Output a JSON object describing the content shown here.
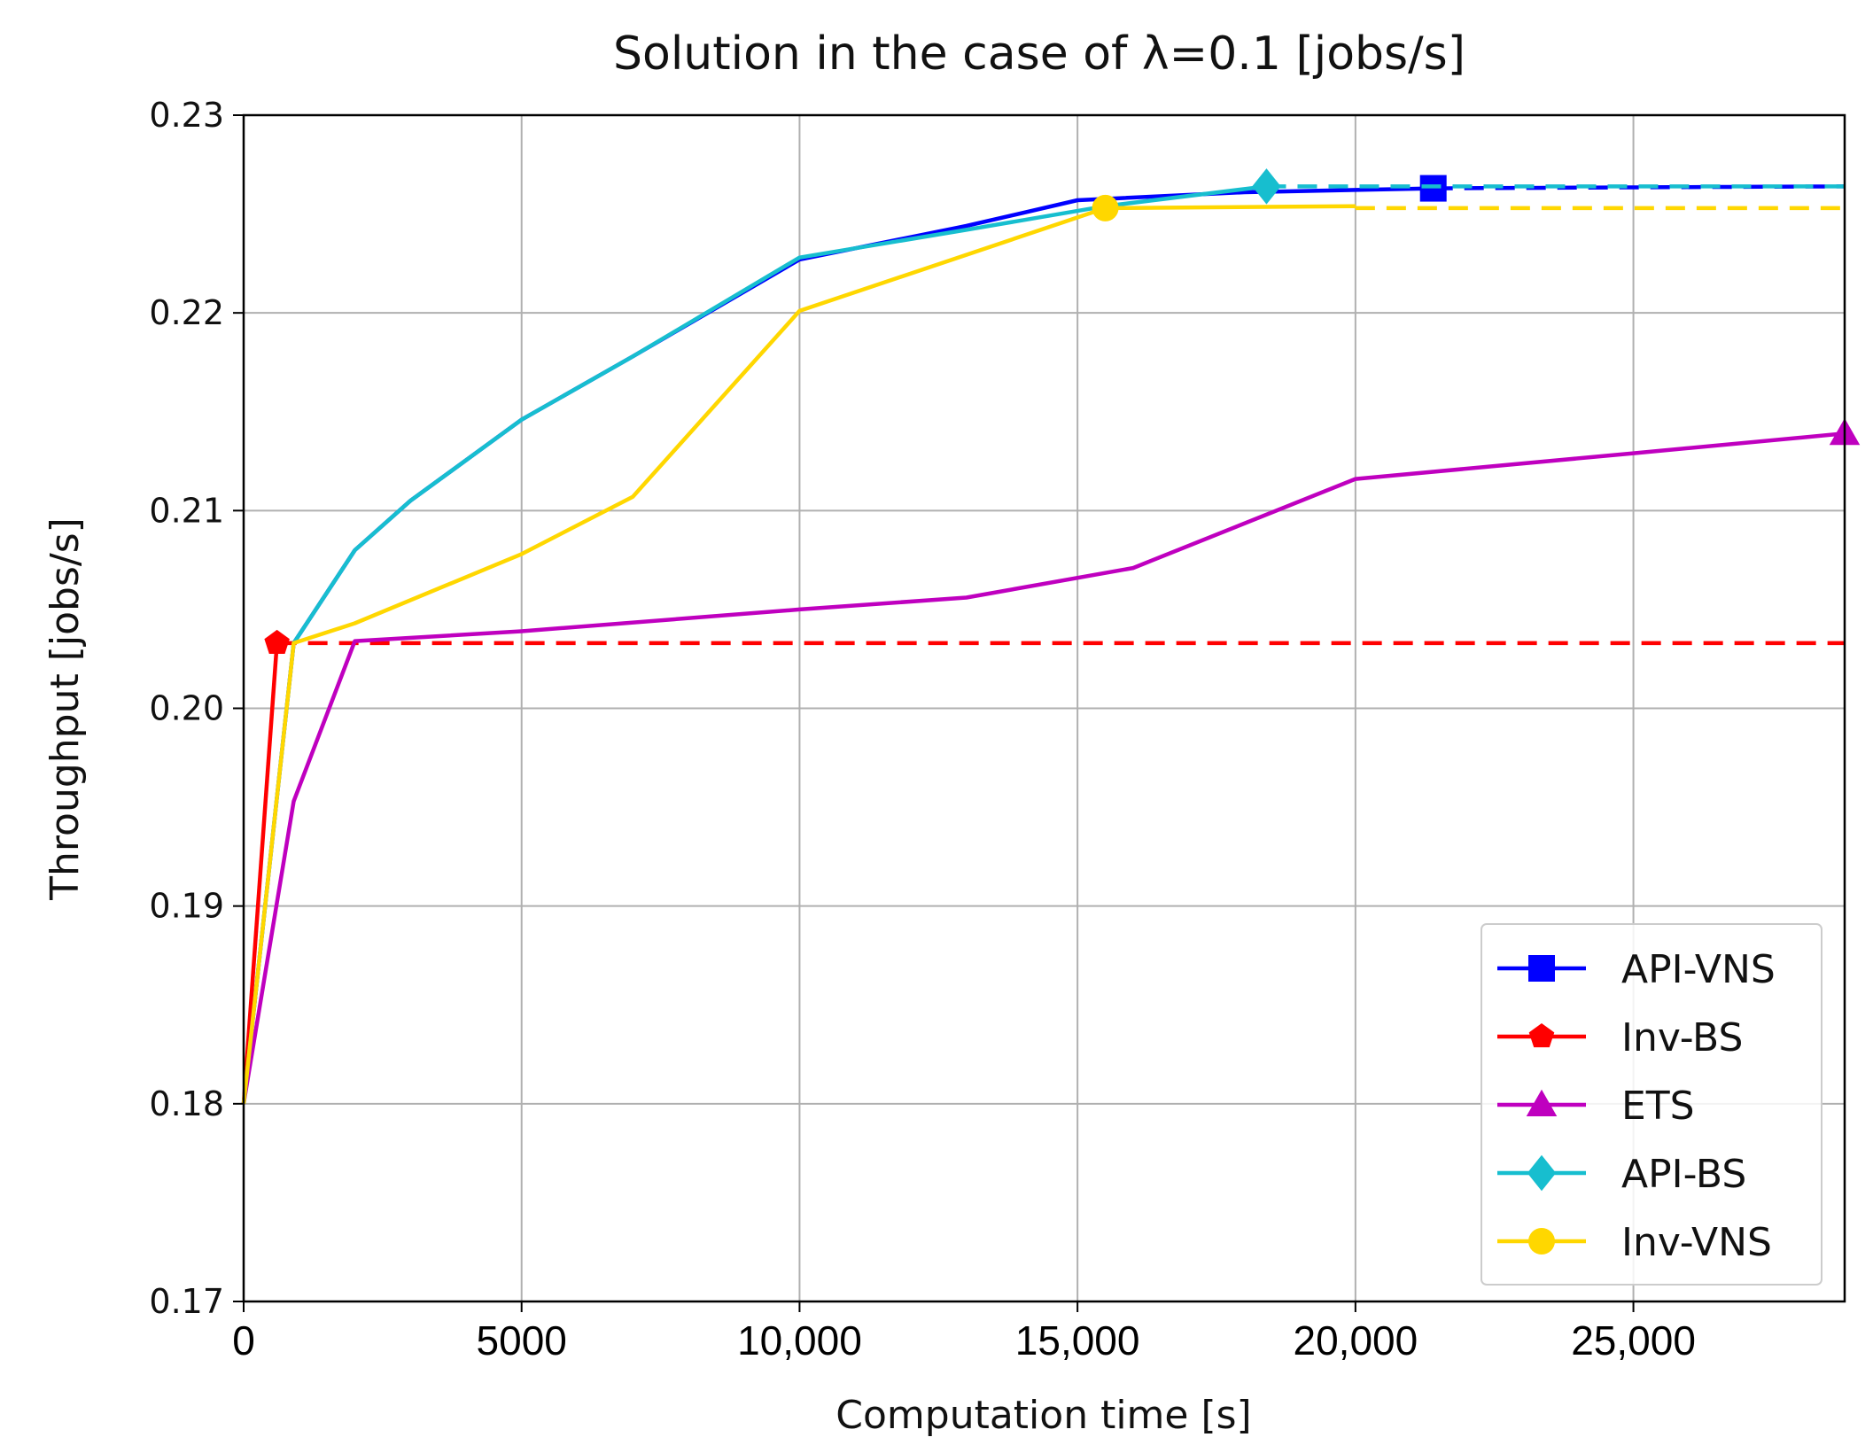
{
  "chart_data": {
    "type": "line",
    "title": "Solution in the case of λ=0.1 [jobs/s]",
    "xlabel": "Computation time [s]",
    "ylabel": "Throughput [jobs/s]",
    "xlim": [
      0,
      28800
    ],
    "ylim": [
      0.17,
      0.23
    ],
    "xticks": [
      0,
      5000,
      10000,
      15000,
      20000,
      25000
    ],
    "xtick_labels": [
      "0",
      "5000",
      "10,000",
      "15,000",
      "20,000",
      "25,000"
    ],
    "yticks": [
      0.17,
      0.18,
      0.19,
      0.2,
      0.21,
      0.22,
      0.23
    ],
    "ytick_labels": [
      "0.17",
      "0.18",
      "0.19",
      "0.20",
      "0.21",
      "0.22",
      "0.23"
    ],
    "grid": true,
    "legend_position": "lower-right",
    "series": [
      {
        "name": "API-VNS",
        "color": "#0000ff",
        "marker": "square",
        "x": [
          0,
          900,
          2000,
          3000,
          5000,
          7000,
          10000,
          13000,
          15000,
          18000,
          21400
        ],
        "y": [
          0.18,
          0.2033,
          0.208,
          0.2105,
          0.2146,
          0.2178,
          0.2227,
          0.2244,
          0.2257,
          0.2261,
          0.2263
        ],
        "final_marker": [
          21400,
          0.2263
        ],
        "dashed_to": [
          28800,
          0.2264
        ]
      },
      {
        "name": "Inv-BS",
        "color": "#ff0000",
        "marker": "pentagon",
        "x": [
          0,
          600
        ],
        "y": [
          0.18,
          0.2033
        ],
        "final_marker": [
          600,
          0.2033
        ],
        "dashed_to": [
          28800,
          0.2033
        ]
      },
      {
        "name": "ETS",
        "color": "#bf00bf",
        "marker": "triangle",
        "x": [
          0,
          900,
          2000,
          5000,
          10000,
          13000,
          16000,
          20000,
          25000,
          28800
        ],
        "y": [
          0.18,
          0.1953,
          0.2034,
          0.2039,
          0.205,
          0.2056,
          0.2071,
          0.2116,
          0.2129,
          0.2139
        ],
        "final_marker": [
          28800,
          0.2139
        ]
      },
      {
        "name": "API-BS",
        "color": "#17becf",
        "marker": "diamond",
        "x": [
          0,
          900,
          2000,
          3000,
          5000,
          7000,
          10000,
          13000,
          15500,
          18400
        ],
        "y": [
          0.18,
          0.2033,
          0.208,
          0.2105,
          0.2146,
          0.2178,
          0.2228,
          0.2242,
          0.2254,
          0.2264
        ],
        "final_marker": [
          18400,
          0.2264
        ],
        "dashed_to": [
          28800,
          0.2264
        ]
      },
      {
        "name": "Inv-VNS",
        "color": "#ffd700",
        "marker": "circle",
        "x": [
          0,
          900,
          2000,
          5000,
          7000,
          10000,
          15500,
          20000
        ],
        "y": [
          0.18,
          0.2033,
          0.2043,
          0.2078,
          0.2107,
          0.2201,
          0.2253,
          0.2254
        ],
        "final_marker": [
          15500,
          0.2253
        ],
        "dashed_to": [
          28800,
          0.2253
        ]
      }
    ]
  }
}
